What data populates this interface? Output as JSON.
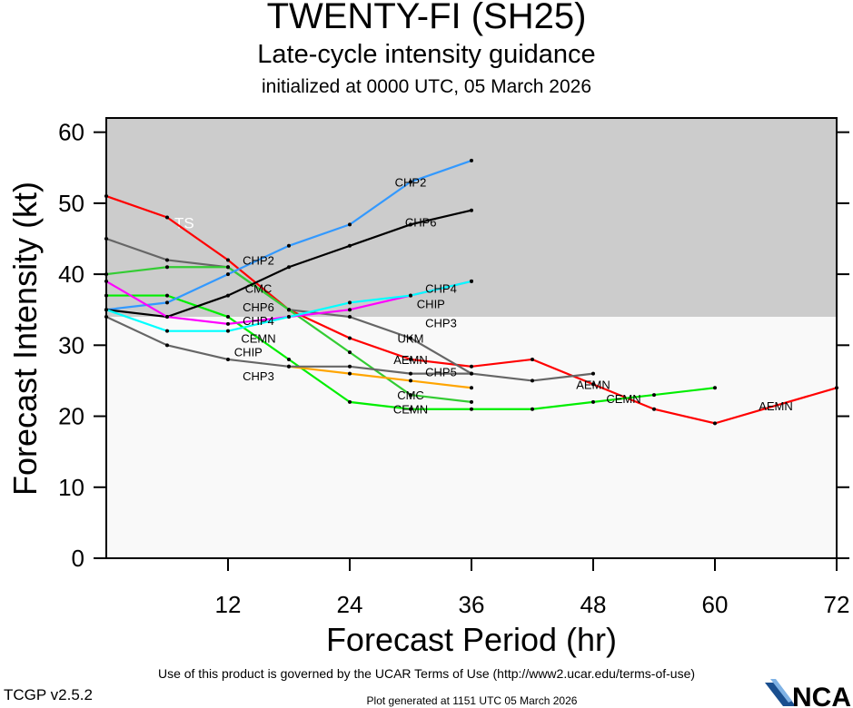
{
  "chart_data": {
    "type": "line",
    "title": "TWENTY-FI (SH25)",
    "subtitle": "Late-cycle intensity guidance",
    "init_text": "initialized at 0000 UTC, 05 March 2026",
    "xlabel": "Forecast Period (hr)",
    "ylabel": "Forecast Intensity (kt)",
    "xlim": [
      0,
      72
    ],
    "ylim": [
      0,
      62
    ],
    "xticks": [
      12,
      24,
      36,
      48,
      60,
      72
    ],
    "yticks": [
      0,
      10,
      20,
      30,
      40,
      50,
      60
    ],
    "threshold": {
      "label": "TS",
      "value": 34,
      "shade_above": "#cccccc",
      "shade_below": "#f9f9f9"
    },
    "grid": false,
    "series": [
      {
        "name": "AEMN",
        "color": "#ff0000",
        "x": [
          0,
          6,
          12,
          18,
          24,
          30,
          36,
          42,
          48,
          54,
          60,
          72
        ],
        "y": [
          51,
          48,
          42,
          35,
          31,
          28,
          27,
          28,
          24.5,
          21,
          19,
          24
        ],
        "labels_at": [
          30,
          48,
          66
        ]
      },
      {
        "name": "UKM",
        "color": "#666666",
        "x": [
          0,
          6,
          12,
          18,
          24,
          30,
          36,
          42,
          48
        ],
        "y": [
          45,
          42,
          41,
          35,
          34,
          31,
          26,
          25,
          26
        ],
        "labels_at": [
          30
        ]
      },
      {
        "name": "CMC",
        "color": "#33cc33",
        "x": [
          0,
          6,
          12,
          18,
          24,
          30,
          36
        ],
        "y": [
          40,
          41,
          41,
          35,
          29,
          23,
          22
        ],
        "labels_at": [
          15,
          30
        ]
      },
      {
        "name": "CEMN",
        "color": "#00ee00",
        "x": [
          0,
          6,
          12,
          18,
          24,
          30,
          36,
          42,
          48,
          54,
          60
        ],
        "y": [
          37,
          37,
          34,
          28,
          22,
          21,
          21,
          21,
          22,
          23,
          24
        ],
        "labels_at": [
          15,
          30,
          51
        ]
      },
      {
        "name": "CHP2",
        "color": "#3399ff",
        "x": [
          0,
          6,
          12,
          18,
          24,
          30,
          36
        ],
        "y": [
          35,
          36,
          40,
          44,
          47,
          53,
          56
        ],
        "labels_at": [
          15,
          30
        ]
      },
      {
        "name": "CHP6",
        "color": "#000000",
        "x": [
          0,
          6,
          12,
          18,
          24,
          30,
          36
        ],
        "y": [
          35,
          34,
          37,
          41,
          44,
          47,
          49
        ],
        "labels_at": [
          15,
          31
        ]
      },
      {
        "name": "CHP4",
        "color": "#ff00ff",
        "x": [
          0,
          6,
          12,
          18,
          24,
          30,
          36
        ],
        "y": [
          39,
          34,
          33,
          34,
          35,
          37,
          39
        ],
        "labels_at": [
          15,
          33
        ]
      },
      {
        "name": "CHIP",
        "color": "#00ffff",
        "x": [
          0,
          6,
          12,
          18,
          24,
          30,
          36
        ],
        "y": [
          35,
          32,
          32,
          34,
          36,
          37,
          39
        ],
        "labels_at": [
          14,
          32
        ]
      },
      {
        "name": "CHP5",
        "color": "#ffa500",
        "x": [
          18,
          24,
          30,
          36
        ],
        "y": [
          27,
          26,
          25,
          24
        ],
        "labels_at": [
          33
        ]
      },
      {
        "name": "CHP3",
        "color": "#666666",
        "x": [
          0,
          6,
          12,
          18,
          24,
          30,
          36
        ],
        "y": [
          34,
          30,
          28,
          27,
          27,
          26,
          26
        ],
        "labels_at": [
          15,
          33
        ]
      }
    ]
  },
  "footer": {
    "terms": "Use of this product is governed by the UCAR Terms of Use (http://www2.ucar.edu/terms-of-use)",
    "version": "TCGP v2.5.2",
    "generated": "Plot generated at 1151 UTC   05 March 2026",
    "logo": "NCAR"
  }
}
